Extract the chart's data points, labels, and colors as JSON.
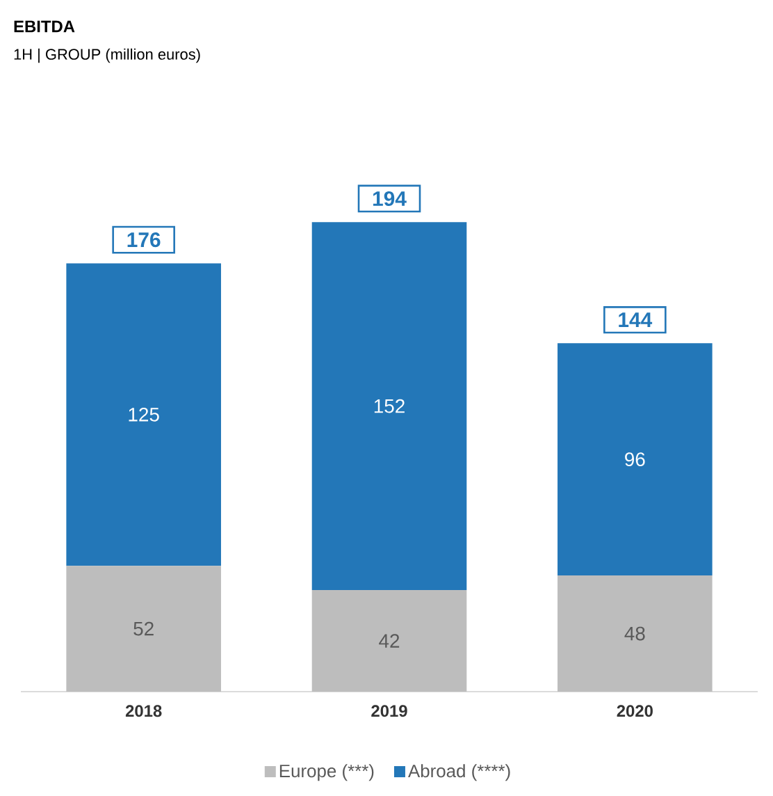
{
  "chart_data": {
    "type": "bar",
    "stacked": true,
    "title": "EBITDA",
    "subtitle": "1H | GROUP (million euros)",
    "categories": [
      "2018",
      "2019",
      "2020"
    ],
    "series": [
      {
        "name": "Europe (***)",
        "color": "#bdbdbd",
        "values": [
          52,
          42,
          48
        ]
      },
      {
        "name": "Abroad (****)",
        "color": "#2377b8",
        "values": [
          125,
          152,
          96
        ]
      }
    ],
    "totals": [
      "176",
      "194",
      "144"
    ],
    "data_labels": true,
    "legend": "bottom"
  }
}
